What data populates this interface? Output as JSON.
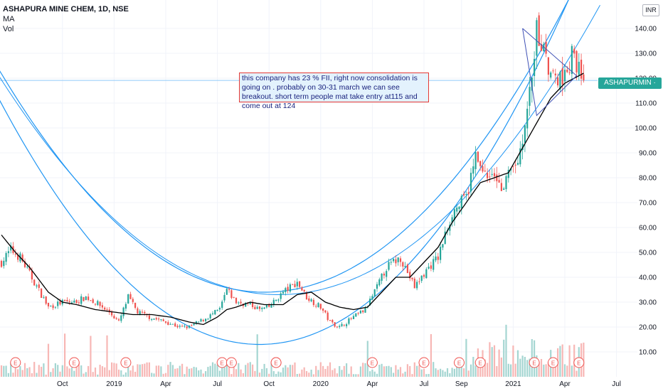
{
  "legend": {
    "symbol": "ASHAPURA MINE CHEM, 1D, NSE",
    "indicator_ma": "MA",
    "indicator_vol": "Vol"
  },
  "currency": "INR",
  "last_price_label": "ASHAPURMIN · 119.10",
  "note_text": "this company has 23 % FII, right now consolidation is going on . probably on 30-31 march we can see breakout. short term people mat take entry at115 and come out at 124",
  "colors": {
    "up": "#26a69a",
    "down": "#ef5350",
    "ma": "#000000",
    "channel": "#2196f3",
    "triangle": "#3f51b5",
    "volume_up": "#a5d6d2",
    "volume_down": "#f7b7b5",
    "earnings": "#ef5350",
    "price_line": "#90caf9"
  },
  "chart_data": {
    "type": "candlestick",
    "ylim": [
      0,
      150
    ],
    "y_ticks": [
      "10.00",
      "20.00",
      "30.00",
      "40.00",
      "50.00",
      "60.00",
      "70.00",
      "80.00",
      "90.00",
      "100.00",
      "110.00",
      "120.00",
      "130.00",
      "140.00"
    ],
    "y_tick_values": [
      10,
      20,
      30,
      40,
      50,
      60,
      70,
      80,
      90,
      100,
      110,
      120,
      130,
      140
    ],
    "x_ticks": [
      "Oct",
      "2019",
      "Apr",
      "Jul",
      "Oct",
      "2020",
      "Apr",
      "Jul",
      "Sep",
      "2021",
      "Apr",
      "Jul"
    ],
    "x_tick_index": [
      26,
      48,
      70,
      92,
      114,
      136,
      158,
      180,
      196,
      218,
      240,
      262
    ],
    "last_price": 119.1,
    "earnings_index": [
      6,
      31,
      53,
      94,
      98,
      117,
      117,
      158,
      180,
      195,
      204,
      227,
      235,
      246
    ],
    "close_anchors": [
      [
        0,
        46
      ],
      [
        4,
        51
      ],
      [
        8,
        48
      ],
      [
        14,
        38
      ],
      [
        20,
        28
      ],
      [
        26,
        30
      ],
      [
        31,
        30
      ],
      [
        36,
        32
      ],
      [
        40,
        30
      ],
      [
        46,
        26
      ],
      [
        50,
        22
      ],
      [
        54,
        32
      ],
      [
        58,
        26
      ],
      [
        63,
        24
      ],
      [
        70,
        22
      ],
      [
        76,
        20
      ],
      [
        80,
        20
      ],
      [
        88,
        24
      ],
      [
        93,
        27
      ],
      [
        96,
        35
      ],
      [
        100,
        30
      ],
      [
        106,
        29
      ],
      [
        110,
        27
      ],
      [
        114,
        28
      ],
      [
        120,
        34
      ],
      [
        126,
        38
      ],
      [
        130,
        32
      ],
      [
        136,
        28
      ],
      [
        140,
        22
      ],
      [
        144,
        20
      ],
      [
        150,
        24
      ],
      [
        155,
        27
      ],
      [
        160,
        36
      ],
      [
        164,
        44
      ],
      [
        170,
        48
      ],
      [
        176,
        36
      ],
      [
        182,
        44
      ],
      [
        186,
        48
      ],
      [
        192,
        66
      ],
      [
        198,
        72
      ],
      [
        202,
        88
      ],
      [
        206,
        80
      ],
      [
        210,
        82
      ],
      [
        214,
        76
      ],
      [
        220,
        88
      ],
      [
        224,
        104
      ],
      [
        228,
        138
      ],
      [
        232,
        128
      ],
      [
        236,
        118
      ],
      [
        240,
        122
      ],
      [
        244,
        130
      ],
      [
        248,
        119.1
      ]
    ],
    "ma_anchors": [
      [
        0,
        57
      ],
      [
        6,
        50
      ],
      [
        12,
        44
      ],
      [
        20,
        34
      ],
      [
        26,
        30
      ],
      [
        32,
        29
      ],
      [
        40,
        27
      ],
      [
        48,
        26
      ],
      [
        56,
        25
      ],
      [
        64,
        25
      ],
      [
        72,
        24
      ],
      [
        80,
        22
      ],
      [
        86,
        21
      ],
      [
        92,
        24
      ],
      [
        96,
        27
      ],
      [
        100,
        28
      ],
      [
        106,
        30
      ],
      [
        112,
        29
      ],
      [
        120,
        29
      ],
      [
        126,
        33
      ],
      [
        132,
        34
      ],
      [
        138,
        30
      ],
      [
        144,
        28
      ],
      [
        150,
        27
      ],
      [
        156,
        28
      ],
      [
        162,
        34
      ],
      [
        168,
        40
      ],
      [
        174,
        40
      ],
      [
        180,
        46
      ],
      [
        186,
        52
      ],
      [
        192,
        62
      ],
      [
        198,
        70
      ],
      [
        204,
        78
      ],
      [
        210,
        80
      ],
      [
        216,
        82
      ],
      [
        222,
        92
      ],
      [
        228,
        102
      ],
      [
        234,
        112
      ],
      [
        240,
        118
      ],
      [
        248,
        122
      ]
    ]
  }
}
